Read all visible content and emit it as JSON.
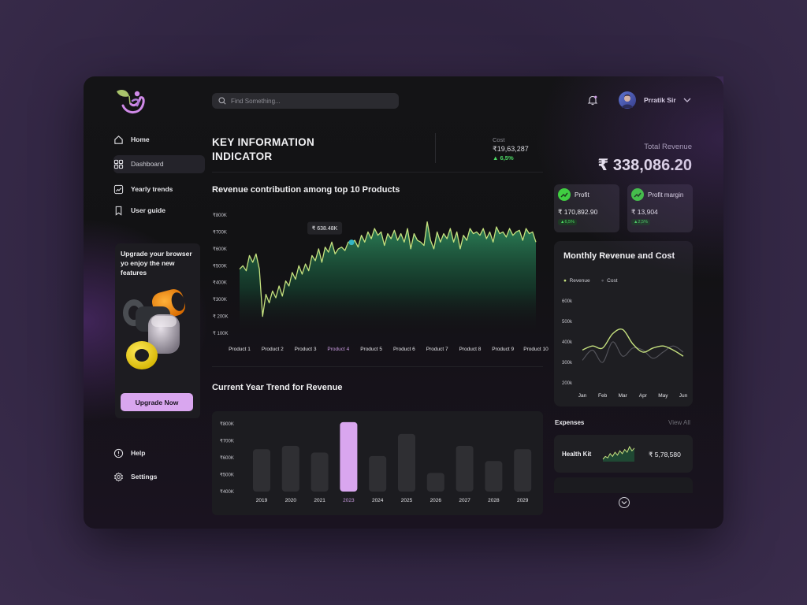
{
  "search": {
    "placeholder": "Find Something..."
  },
  "user": {
    "name": "Prratik Sir"
  },
  "sidebar": {
    "items": [
      {
        "label": "Home",
        "icon": "home-icon"
      },
      {
        "label": "Dashboard",
        "icon": "grid-icon",
        "active": true
      },
      {
        "label": "Yearly trends",
        "icon": "trend-icon"
      },
      {
        "label": "User guide",
        "icon": "bookmark-icon"
      }
    ],
    "bottom": [
      {
        "label": "Help",
        "icon": "info-icon"
      },
      {
        "label": "Settings",
        "icon": "gear-icon"
      }
    ],
    "upgrade": {
      "text": "Upgrade your  browser yo enjoy the new features",
      "button": "Upgrade Now"
    }
  },
  "kpi": {
    "title_line1": "KEY INFORMATION",
    "title_line2": "INDICATOR",
    "cost_label": "Cost",
    "cost_value": "₹19,63,287",
    "cost_change": "6,5%"
  },
  "revenue_total": {
    "label": "Total Revenue",
    "value": "₹ 338,086.20"
  },
  "cards": [
    {
      "label": "Profit",
      "value": "₹ 170,892.90",
      "change": "6,5%"
    },
    {
      "label": "Profit margin",
      "value": "₹ 13,904",
      "change": "2,5%"
    }
  ],
  "expenses": {
    "label": "Expenses",
    "view_all": "View All",
    "items": [
      {
        "name": "Health Kit",
        "value": "₹ 5,78,580"
      }
    ]
  },
  "colors": {
    "accent": "#d9a6ef",
    "green": "#c6e27f",
    "positive": "#4cd964"
  },
  "chart_data": [
    {
      "type": "area",
      "title": "Revenue contribution among top 10 Products",
      "categories": [
        "Product 1",
        "Product 2",
        "Product 3",
        "Product 4",
        "Product 5",
        "Product 6",
        "Product 7",
        "Product 8",
        "Product 9",
        "Product 10"
      ],
      "highlight_category": "Product 4",
      "y_ticks": [
        "₹800K",
        "₹700K",
        "₹600K",
        "₹500K",
        "₹400K",
        "₹300K",
        "₹ 200K",
        "₹ 100K"
      ],
      "ylim": [
        100,
        800
      ],
      "tooltip": "₹ 638.48K",
      "tooltip_x": 3.4,
      "tooltip_y": 638.48,
      "series": [
        {
          "x": [
            0,
            0.1,
            0.2,
            0.3,
            0.4,
            0.5,
            0.6,
            0.7,
            0.8,
            0.9,
            1,
            1.1,
            1.2,
            1.3,
            1.4,
            1.5,
            1.6,
            1.7,
            1.8,
            1.9,
            2,
            2.1,
            2.2,
            2.3,
            2.4,
            2.5,
            2.6,
            2.7,
            2.8,
            2.9,
            3,
            3.1,
            3.2,
            3.3,
            3.4,
            3.5,
            3.6,
            3.7,
            3.8,
            3.9,
            4,
            4.1,
            4.2,
            4.3,
            4.4,
            4.5,
            4.6,
            4.7,
            4.8,
            4.9,
            5,
            5.1,
            5.2,
            5.3,
            5.4,
            5.5,
            5.6,
            5.7,
            5.8,
            5.9,
            6,
            6.1,
            6.2,
            6.3,
            6.4,
            6.5,
            6.6,
            6.7,
            6.8,
            6.9,
            7,
            7.1,
            7.2,
            7.3,
            7.4,
            7.5,
            7.6,
            7.7,
            7.8,
            7.9,
            8,
            8.1,
            8.2,
            8.3,
            8.4,
            8.5,
            8.6,
            8.7,
            8.8,
            8.9,
            9
          ],
          "values": [
            480,
            500,
            470,
            560,
            520,
            570,
            480,
            200,
            330,
            280,
            350,
            310,
            380,
            320,
            410,
            380,
            460,
            420,
            500,
            450,
            510,
            470,
            560,
            530,
            600,
            520,
            610,
            580,
            640,
            570,
            600,
            610,
            590,
            640,
            638,
            650,
            610,
            680,
            640,
            700,
            660,
            720,
            680,
            700,
            620,
            690,
            660,
            710,
            650,
            690,
            640,
            720,
            600,
            690,
            650,
            640,
            620,
            760,
            650,
            600,
            700,
            640,
            690,
            660,
            720,
            640,
            700,
            600,
            680,
            650,
            720,
            690,
            700,
            680,
            720,
            660,
            700,
            640,
            730,
            690,
            700,
            670,
            720,
            680,
            700,
            710,
            650,
            720,
            690,
            700,
            640
          ]
        }
      ]
    },
    {
      "type": "bar",
      "title": "Current Year Trend for Revenue",
      "categories": [
        "2019",
        "2020",
        "2021",
        "2023",
        "2024",
        "2025",
        "2026",
        "2027",
        "2028",
        "2029"
      ],
      "values": [
        650,
        670,
        630,
        810,
        610,
        740,
        510,
        670,
        580,
        650
      ],
      "highlight_category": "2023",
      "y_ticks": [
        "₹800K",
        "₹700K",
        "₹600K",
        "₹500K",
        "₹400K"
      ],
      "ylim": [
        400,
        800
      ]
    },
    {
      "type": "line",
      "title": "Monthly Revenue and Cost",
      "categories": [
        "Jan",
        "Feb",
        "Mar",
        "Apr",
        "May",
        "Jun"
      ],
      "y_ticks": [
        "600k",
        "500k",
        "400k",
        "300k",
        "200k"
      ],
      "ylim": [
        200,
        600
      ],
      "series": [
        {
          "name": "Revenue",
          "x": [
            0,
            0.5,
            1,
            1.5,
            2,
            2.5,
            3,
            3.5,
            4,
            4.5,
            5
          ],
          "values": [
            360,
            380,
            370,
            440,
            460,
            390,
            350,
            370,
            380,
            360,
            330
          ]
        },
        {
          "name": "Cost",
          "x": [
            0,
            0.5,
            1,
            1.5,
            2,
            2.5,
            3,
            3.5,
            4,
            4.5,
            5
          ],
          "values": [
            310,
            360,
            300,
            400,
            330,
            370,
            360,
            320,
            350,
            380,
            350
          ]
        }
      ]
    },
    {
      "type": "line",
      "title": "",
      "series": [
        {
          "values": [
            3,
            5,
            4,
            7,
            5,
            8,
            6,
            9,
            7,
            10,
            8,
            12,
            9,
            11
          ]
        }
      ]
    }
  ]
}
